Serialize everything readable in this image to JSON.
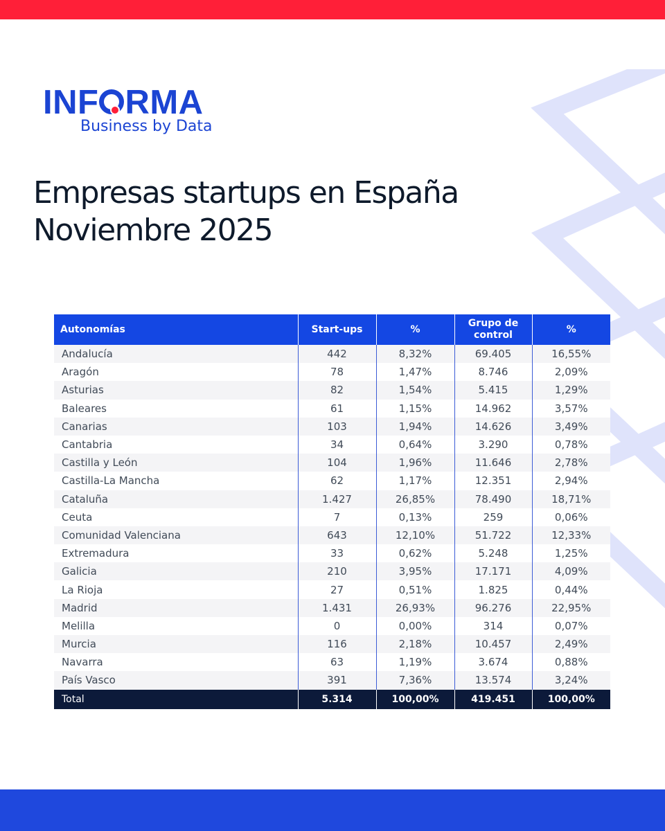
{
  "logo": {
    "main_before": "INF",
    "main_after": "RMA",
    "tagline": "Business by Data"
  },
  "title": {
    "line1": "Empresas startups en España",
    "line2": "Noviembre 2025"
  },
  "table": {
    "headers": [
      "Autonomías",
      "Start-ups",
      "%",
      "Grupo de control",
      "%"
    ],
    "rows": [
      [
        "Andalucía",
        "442",
        "8,32%",
        "69.405",
        "16,55%"
      ],
      [
        "Aragón",
        "78",
        "1,47%",
        "8.746",
        "2,09%"
      ],
      [
        "Asturias",
        "82",
        "1,54%",
        "5.415",
        "1,29%"
      ],
      [
        "Baleares",
        "61",
        "1,15%",
        "14.962",
        "3,57%"
      ],
      [
        "Canarias",
        "103",
        "1,94%",
        "14.626",
        "3,49%"
      ],
      [
        "Cantabria",
        "34",
        "0,64%",
        "3.290",
        "0,78%"
      ],
      [
        "Castilla y León",
        "104",
        "1,96%",
        "11.646",
        "2,78%"
      ],
      [
        "Castilla-La Mancha",
        "62",
        "1,17%",
        "12.351",
        "2,94%"
      ],
      [
        "Cataluña",
        "1.427",
        "26,85%",
        "78.490",
        "18,71%"
      ],
      [
        "Ceuta",
        "7",
        "0,13%",
        "259",
        "0,06%"
      ],
      [
        "Comunidad Valenciana",
        "643",
        "12,10%",
        "51.722",
        "12,33%"
      ],
      [
        "Extremadura",
        "33",
        "0,62%",
        "5.248",
        "1,25%"
      ],
      [
        "Galicia",
        "210",
        "3,95%",
        "17.171",
        "4,09%"
      ],
      [
        "La Rioja",
        "27",
        "0,51%",
        "1.825",
        "0,44%"
      ],
      [
        "Madrid",
        "1.431",
        "26,93%",
        "96.276",
        "22,95%"
      ],
      [
        "Melilla",
        "0",
        "0,00%",
        "314",
        "0,07%"
      ],
      [
        "Murcia",
        "116",
        "2,18%",
        "10.457",
        "2,49%"
      ],
      [
        "Navarra",
        "63",
        "1,19%",
        "3.674",
        "0,88%"
      ],
      [
        "País Vasco",
        "391",
        "7,36%",
        "13.574",
        "3,24%"
      ]
    ],
    "total": [
      "Total",
      "5.314",
      "100,00%",
      "419.451",
      "100,00%"
    ]
  },
  "colors": {
    "top_bar": "#ff1f38",
    "bottom_bar": "#1f48dd",
    "header_bg": "#1447e3",
    "total_bg": "#0c1a3a",
    "logo_blue": "#1b44d3",
    "logo_red": "#ff1f38",
    "deco": "#dfe3fb"
  },
  "icons": {
    "background_decoration": "chevron-pattern"
  }
}
